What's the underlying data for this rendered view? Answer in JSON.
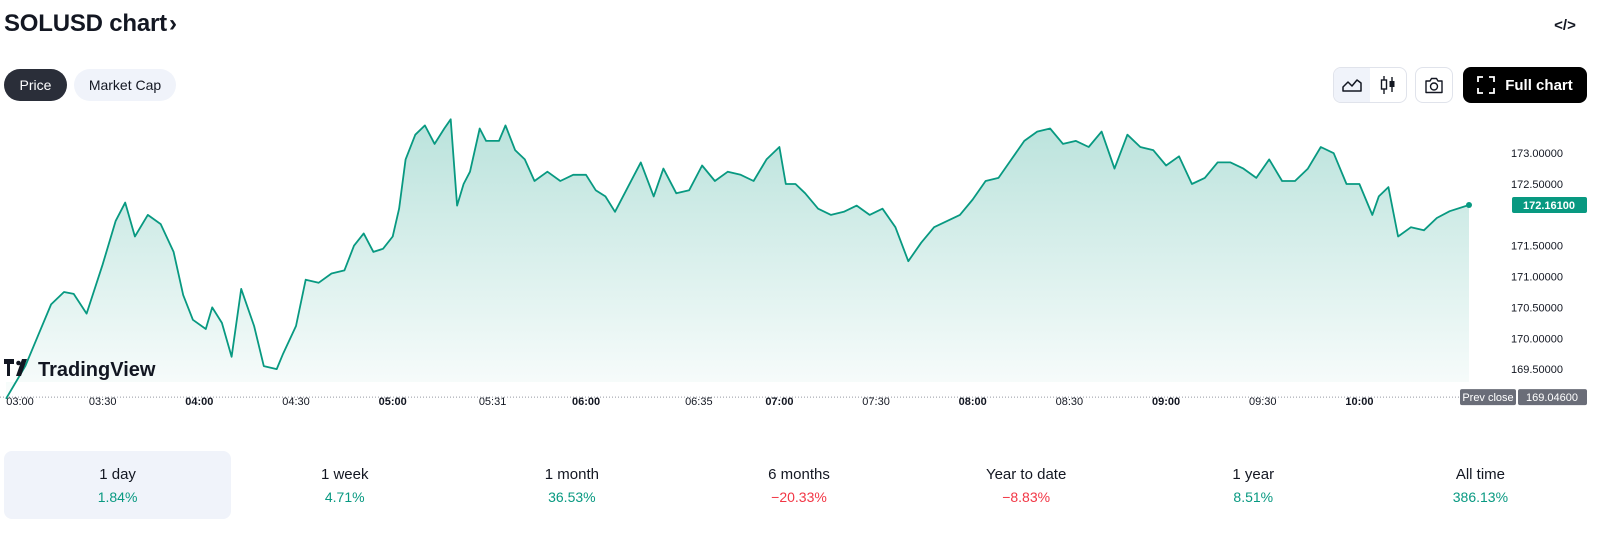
{
  "header": {
    "title": "SOLUSD chart",
    "chevron_glyph": "›",
    "embed_glyph": "</>"
  },
  "toggles": [
    {
      "label": "Price",
      "active": true
    },
    {
      "label": "Market Cap",
      "active": false
    }
  ],
  "toolbar": {
    "full_chart_label": "Full chart",
    "icons": [
      "area-chart-icon",
      "candles-icon",
      "camera-icon",
      "fullscreen-icon"
    ]
  },
  "colors": {
    "line": "#089981",
    "accent_dark": "#000000",
    "positive": "#089981",
    "negative": "#f23645"
  },
  "watermark": "TradingView",
  "chart_data": {
    "type": "area",
    "title": "",
    "xlabel": "",
    "ylabel": "",
    "x_ticks": [
      "03:00",
      "03:30",
      "04:00",
      "04:30",
      "05:00",
      "05:31",
      "06:00",
      "06:35",
      "07:00",
      "07:30",
      "08:00",
      "08:30",
      "09:00",
      "09:30",
      "10:00"
    ],
    "y_ticks": [
      "169.50000",
      "170.00000",
      "170.50000",
      "171.00000",
      "171.50000",
      "172.50000",
      "173.00000"
    ],
    "ylim": [
      169.0,
      173.7
    ],
    "xlim": [
      "03:00",
      "10:34"
    ],
    "grid": false,
    "current_price": {
      "label": "172.16100",
      "value": 172.161
    },
    "prev_close": {
      "label": "Prev close",
      "value_label": "169.04600",
      "value": 169.046
    },
    "series": [
      {
        "points": [
          [
            "03:00",
            169.02
          ],
          [
            "03:06",
            169.55
          ],
          [
            "03:10",
            170.05
          ],
          [
            "03:14",
            170.55
          ],
          [
            "03:18",
            170.75
          ],
          [
            "03:21",
            170.72
          ],
          [
            "03:25",
            170.4
          ],
          [
            "03:30",
            171.2
          ],
          [
            "03:34",
            171.9
          ],
          [
            "03:37",
            172.2
          ],
          [
            "03:40",
            171.65
          ],
          [
            "03:44",
            172.0
          ],
          [
            "03:48",
            171.85
          ],
          [
            "03:52",
            171.4
          ],
          [
            "03:55",
            170.7
          ],
          [
            "03:58",
            170.3
          ],
          [
            "04:02",
            170.15
          ],
          [
            "04:04",
            170.5
          ],
          [
            "04:07",
            170.25
          ],
          [
            "04:10",
            169.7
          ],
          [
            "04:13",
            170.8
          ],
          [
            "04:17",
            170.2
          ],
          [
            "04:20",
            169.55
          ],
          [
            "04:24",
            169.5
          ],
          [
            "04:26",
            169.75
          ],
          [
            "04:30",
            170.2
          ],
          [
            "04:33",
            170.95
          ],
          [
            "04:37",
            170.9
          ],
          [
            "04:41",
            171.05
          ],
          [
            "04:45",
            171.1
          ],
          [
            "04:48",
            171.5
          ],
          [
            "04:51",
            171.7
          ],
          [
            "04:54",
            171.4
          ],
          [
            "04:57",
            171.45
          ],
          [
            "05:00",
            171.65
          ],
          [
            "05:02",
            172.1
          ],
          [
            "05:04",
            172.9
          ],
          [
            "05:07",
            173.3
          ],
          [
            "05:10",
            173.45
          ],
          [
            "05:13",
            173.15
          ],
          [
            "05:16",
            173.4
          ],
          [
            "05:18",
            173.55
          ],
          [
            "05:20",
            172.15
          ],
          [
            "05:22",
            172.5
          ],
          [
            "05:24",
            172.7
          ],
          [
            "05:27",
            173.4
          ],
          [
            "05:29",
            173.2
          ],
          [
            "05:33",
            173.2
          ],
          [
            "05:35",
            173.45
          ],
          [
            "05:38",
            173.05
          ],
          [
            "05:41",
            172.9
          ],
          [
            "05:44",
            172.55
          ],
          [
            "05:48",
            172.7
          ],
          [
            "05:52",
            172.55
          ],
          [
            "05:56",
            172.65
          ],
          [
            "06:00",
            172.65
          ],
          [
            "06:03",
            172.4
          ],
          [
            "06:06",
            172.3
          ],
          [
            "06:09",
            172.05
          ],
          [
            "06:13",
            172.45
          ],
          [
            "06:17",
            172.85
          ],
          [
            "06:21",
            172.3
          ],
          [
            "06:24",
            172.75
          ],
          [
            "06:28",
            172.35
          ],
          [
            "06:32",
            172.4
          ],
          [
            "06:36",
            172.8
          ],
          [
            "06:40",
            172.55
          ],
          [
            "06:44",
            172.7
          ],
          [
            "06:48",
            172.65
          ],
          [
            "06:52",
            172.55
          ],
          [
            "06:56",
            172.9
          ],
          [
            "07:00",
            173.1
          ],
          [
            "07:02",
            172.5
          ],
          [
            "07:05",
            172.5
          ],
          [
            "07:08",
            172.35
          ],
          [
            "07:12",
            172.1
          ],
          [
            "07:16",
            172.0
          ],
          [
            "07:20",
            172.05
          ],
          [
            "07:24",
            172.15
          ],
          [
            "07:28",
            172.0
          ],
          [
            "07:32",
            172.1
          ],
          [
            "07:36",
            171.8
          ],
          [
            "07:40",
            171.25
          ],
          [
            "07:44",
            171.55
          ],
          [
            "07:48",
            171.8
          ],
          [
            "07:52",
            171.9
          ],
          [
            "07:56",
            172.0
          ],
          [
            "08:00",
            172.25
          ],
          [
            "08:04",
            172.55
          ],
          [
            "08:08",
            172.6
          ],
          [
            "08:12",
            172.9
          ],
          [
            "08:16",
            173.2
          ],
          [
            "08:20",
            173.35
          ],
          [
            "08:24",
            173.4
          ],
          [
            "08:28",
            173.15
          ],
          [
            "08:32",
            173.2
          ],
          [
            "08:36",
            173.1
          ],
          [
            "08:40",
            173.35
          ],
          [
            "08:44",
            172.75
          ],
          [
            "08:48",
            173.3
          ],
          [
            "08:52",
            173.1
          ],
          [
            "08:56",
            173.05
          ],
          [
            "09:00",
            172.8
          ],
          [
            "09:04",
            172.95
          ],
          [
            "09:08",
            172.5
          ],
          [
            "09:12",
            172.6
          ],
          [
            "09:16",
            172.85
          ],
          [
            "09:20",
            172.85
          ],
          [
            "09:24",
            172.75
          ],
          [
            "09:28",
            172.6
          ],
          [
            "09:32",
            172.9
          ],
          [
            "09:36",
            172.55
          ],
          [
            "09:40",
            172.55
          ],
          [
            "09:44",
            172.75
          ],
          [
            "09:48",
            173.1
          ],
          [
            "09:52",
            173.0
          ],
          [
            "09:56",
            172.5
          ],
          [
            "10:00",
            172.5
          ],
          [
            "10:04",
            172.0
          ],
          [
            "10:06",
            172.3
          ],
          [
            "10:09",
            172.45
          ],
          [
            "10:12",
            171.65
          ],
          [
            "10:16",
            171.8
          ],
          [
            "10:20",
            171.75
          ],
          [
            "10:24",
            171.95
          ],
          [
            "10:28",
            172.06
          ],
          [
            "10:34",
            172.161
          ]
        ]
      }
    ]
  },
  "periods": [
    {
      "label": "1 day",
      "value": "1.84%",
      "trend": "pos",
      "active": true
    },
    {
      "label": "1 week",
      "value": "4.71%",
      "trend": "pos",
      "active": false
    },
    {
      "label": "1 month",
      "value": "36.53%",
      "trend": "pos",
      "active": false
    },
    {
      "label": "6 months",
      "value": "−20.33%",
      "trend": "neg",
      "active": false
    },
    {
      "label": "Year to date",
      "value": "−8.83%",
      "trend": "neg",
      "active": false
    },
    {
      "label": "1 year",
      "value": "8.51%",
      "trend": "pos",
      "active": false
    },
    {
      "label": "All time",
      "value": "386.13%",
      "trend": "pos",
      "active": false
    }
  ]
}
